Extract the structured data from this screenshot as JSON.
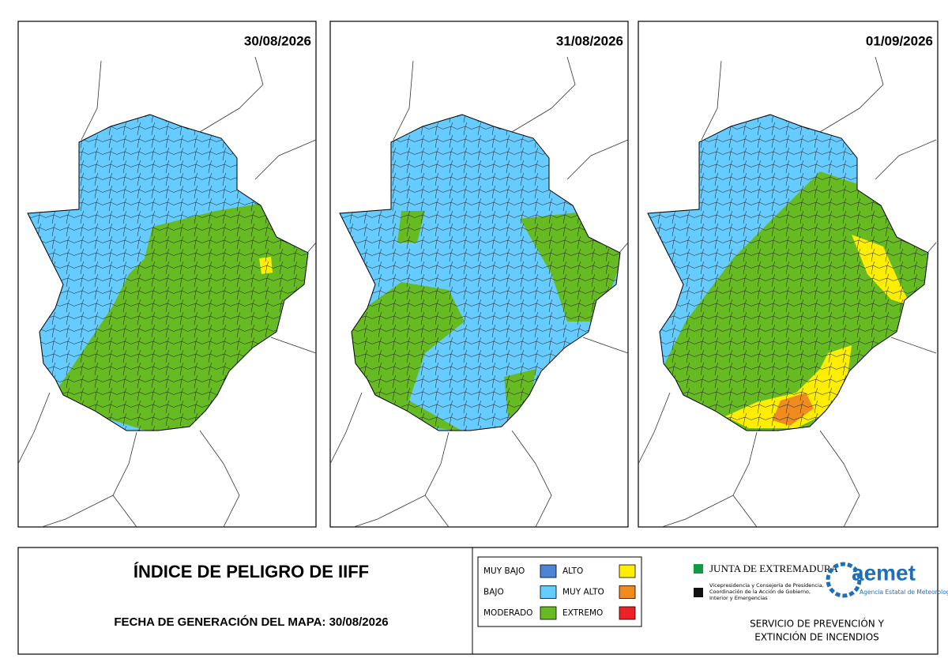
{
  "panels": [
    {
      "date": "30/08/2026"
    },
    {
      "date": "31/08/2026"
    },
    {
      "date": "01/09/2026"
    }
  ],
  "title": "ÍNDICE DE PELIGRO DE IIFF",
  "generation_date": "FECHA DE GENERACIÓN DEL MAPA: 30/08/2026",
  "legend": {
    "items": [
      {
        "label": "MUY BAJO",
        "color": "#4a86d4"
      },
      {
        "label": "BAJO",
        "color": "#66ccff"
      },
      {
        "label": "MODERADO",
        "color": "#66bb22"
      },
      {
        "label": "ALTO",
        "color": "#ffee00"
      },
      {
        "label": "MUY ALTO",
        "color": "#f08c1e"
      },
      {
        "label": "EXTREMO",
        "color": "#ee2222"
      }
    ]
  },
  "logos": {
    "junta": {
      "name": "JUNTA DE EXTREMADURA",
      "lines": [
        "Vicepresidencia y Consejería de Presidencia,",
        "Coordinación de la Acción de Gobierno,",
        "Interior y Emergencias"
      ]
    },
    "aemet": {
      "name": "aemet",
      "subtitle": "Agencia Estatal de Meteorología"
    }
  },
  "service": [
    "SERVICIO DE PREVENCIÓN Y",
    "EXTINCIÓN DE INCENDIOS"
  ]
}
